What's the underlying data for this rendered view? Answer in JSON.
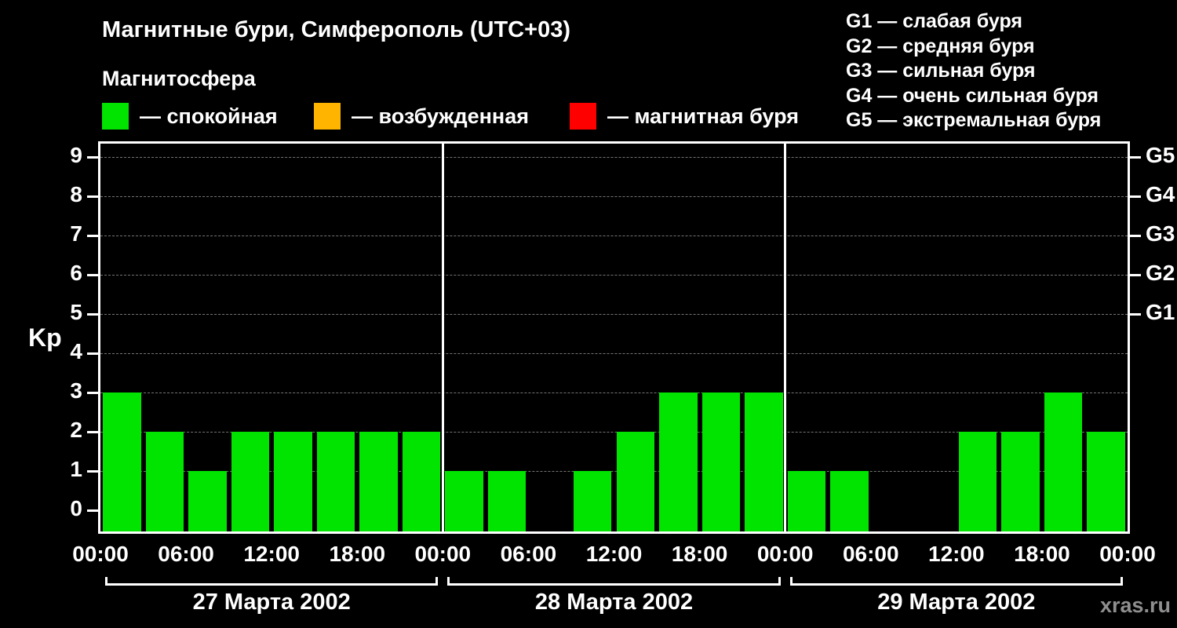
{
  "title": "Магнитные бури, Симферополь (UTC+03)",
  "subtitle": "Магнитосфера",
  "legend": {
    "items": [
      {
        "name": "quiet",
        "label": "— спокойная",
        "color": "#00e400"
      },
      {
        "name": "active",
        "label": "— возбужденная",
        "color": "#ffb400"
      },
      {
        "name": "storm",
        "label": "— магнитная буря",
        "color": "#ff0000"
      }
    ]
  },
  "storm_scale": [
    "G1 — слабая буря",
    "G2 — средняя буря",
    "G3 — сильная буря",
    "G4 — очень сильная буря",
    "G5 — экстремальная буря"
  ],
  "watermark": "xras.ru",
  "chart_data": {
    "type": "bar",
    "title": "Магнитные бури, Симферополь (UTC+03)",
    "xlabel": "",
    "ylabel": "Kp",
    "ylim": [
      0,
      9
    ],
    "yticks": [
      0,
      1,
      2,
      3,
      4,
      5,
      6,
      7,
      8,
      9
    ],
    "grid": "horizontal-dashed",
    "bar_color": "#00e400",
    "bar_interval_hours": 3,
    "right_axis_labels": [
      {
        "label": "G5",
        "value": 9
      },
      {
        "label": "G4",
        "value": 8
      },
      {
        "label": "G3",
        "value": 7
      },
      {
        "label": "G2",
        "value": 6
      },
      {
        "label": "G1",
        "value": 5
      }
    ],
    "x_tick_labels": [
      "00:00",
      "06:00",
      "12:00",
      "18:00",
      "00:00",
      "06:00",
      "12:00",
      "18:00",
      "00:00",
      "06:00",
      "12:00",
      "18:00",
      "00:00"
    ],
    "days": [
      {
        "date": "27 Марта 2002",
        "values": [
          3,
          2,
          1,
          2,
          2,
          2,
          2,
          2
        ]
      },
      {
        "date": "28 Марта 2002",
        "values": [
          1,
          1,
          0,
          1,
          2,
          3,
          3,
          3
        ]
      },
      {
        "date": "29 Марта 2002",
        "values": [
          1,
          1,
          0,
          0,
          2,
          2,
          3,
          2
        ]
      }
    ]
  }
}
